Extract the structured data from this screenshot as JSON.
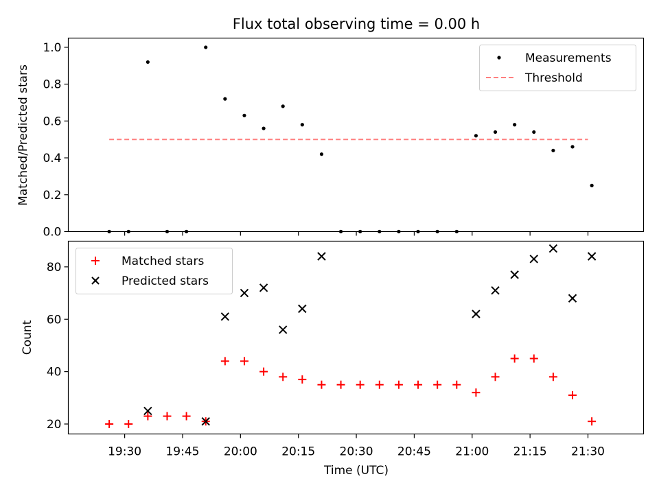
{
  "chart_data": {
    "title": "Flux total observing time = 0.00 h",
    "xlabel": "Time (UTC)",
    "x_tick_labels": [
      "19:30",
      "19:45",
      "20:00",
      "20:15",
      "20:30",
      "20:45",
      "21:00",
      "21:15",
      "21:30"
    ],
    "x_tick_minutes": [
      1170,
      1185,
      1200,
      1215,
      1230,
      1245,
      1260,
      1275,
      1290
    ],
    "xlim_minutes": [
      1155.4,
      1304.4
    ],
    "times": [
      "19:26",
      "19:31",
      "19:36",
      "19:41",
      "19:46",
      "19:51",
      "19:56",
      "20:01",
      "20:06",
      "20:11",
      "20:16",
      "20:21",
      "20:26",
      "20:31",
      "20:36",
      "20:41",
      "20:46",
      "20:51",
      "20:56",
      "21:01",
      "21:06",
      "21:11",
      "21:16",
      "21:21",
      "21:26",
      "21:31"
    ],
    "time_minutes": [
      1166,
      1171,
      1176,
      1181,
      1186,
      1191,
      1196,
      1201,
      1206,
      1211,
      1216,
      1221,
      1226,
      1231,
      1236,
      1241,
      1246,
      1251,
      1256,
      1261,
      1266,
      1271,
      1276,
      1281,
      1286,
      1291
    ],
    "panels": [
      {
        "type": "scatter",
        "ylabel": "Matched/Predicted stars",
        "ylim": [
          0.0,
          1.05
        ],
        "y_ticks": [
          0.0,
          0.2,
          0.4,
          0.6,
          0.8,
          1.0
        ],
        "y_tick_labels": [
          "0.0",
          "0.2",
          "0.4",
          "0.6",
          "0.8",
          "1.0"
        ],
        "legend": "top-right",
        "series": [
          {
            "name": "Measurements",
            "marker": "dot",
            "color": "#000000",
            "values": [
              0.0,
              0.0,
              0.92,
              0.0,
              0.0,
              1.0,
              0.72,
              0.63,
              0.56,
              0.68,
              0.58,
              0.42,
              0.0,
              0.0,
              0.0,
              0.0,
              0.0,
              0.0,
              0.0,
              0.52,
              0.54,
              0.58,
              0.54,
              0.44,
              0.46,
              0.25
            ]
          }
        ],
        "lines": [
          {
            "name": "Threshold",
            "y": 0.5,
            "x_range_minutes": [
              1166,
              1290
            ],
            "style": "dashed",
            "color": "#ff7f7f"
          }
        ]
      },
      {
        "type": "scatter",
        "ylabel": "Count",
        "ylim": [
          16.2,
          89.8
        ],
        "y_ticks": [
          20,
          40,
          60,
          80
        ],
        "y_tick_labels": [
          "20",
          "40",
          "60",
          "80"
        ],
        "legend": "top-left",
        "series": [
          {
            "name": "Matched stars",
            "marker": "plus",
            "color": "#ff0000",
            "values": [
              20,
              20,
              23,
              23,
              23,
              21,
              44,
              44,
              40,
              38,
              37,
              35,
              35,
              35,
              35,
              35,
              35,
              35,
              35,
              32,
              38,
              45,
              45,
              38,
              31,
              21
            ]
          },
          {
            "name": "Predicted stars",
            "marker": "x",
            "color": "#000000",
            "values": [
              null,
              null,
              25,
              null,
              null,
              21,
              61,
              70,
              72,
              56,
              64,
              84,
              null,
              null,
              null,
              null,
              null,
              null,
              null,
              62,
              71,
              77,
              83,
              87,
              68,
              84
            ]
          }
        ]
      }
    ]
  }
}
